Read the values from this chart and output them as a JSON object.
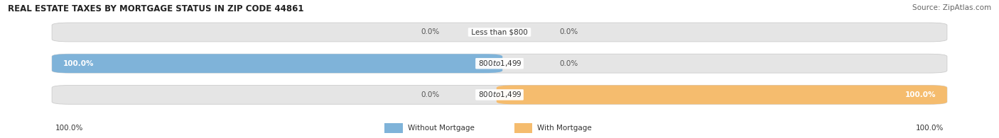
{
  "title": "REAL ESTATE TAXES BY MORTGAGE STATUS IN ZIP CODE 44861",
  "source": "Source: ZipAtlas.com",
  "bars": [
    {
      "label": "Less than $800",
      "without_mortgage": 0.0,
      "with_mortgage": 0.0
    },
    {
      "label": "$800 to $1,499",
      "without_mortgage": 100.0,
      "with_mortgage": 0.0
    },
    {
      "label": "$800 to $1,499",
      "without_mortgage": 0.0,
      "with_mortgage": 100.0
    }
  ],
  "color_without": "#7fb3d9",
  "color_with": "#f5bc6e",
  "bar_bg_color": "#e5e5e5",
  "bar_bg_edge": "#cccccc",
  "figsize": [
    14.06,
    1.95
  ],
  "dpi": 100,
  "title_fontsize": 8.5,
  "source_fontsize": 7.5,
  "tick_fontsize": 7.5,
  "bar_label_fontsize": 7.5,
  "category_fontsize": 7.5
}
